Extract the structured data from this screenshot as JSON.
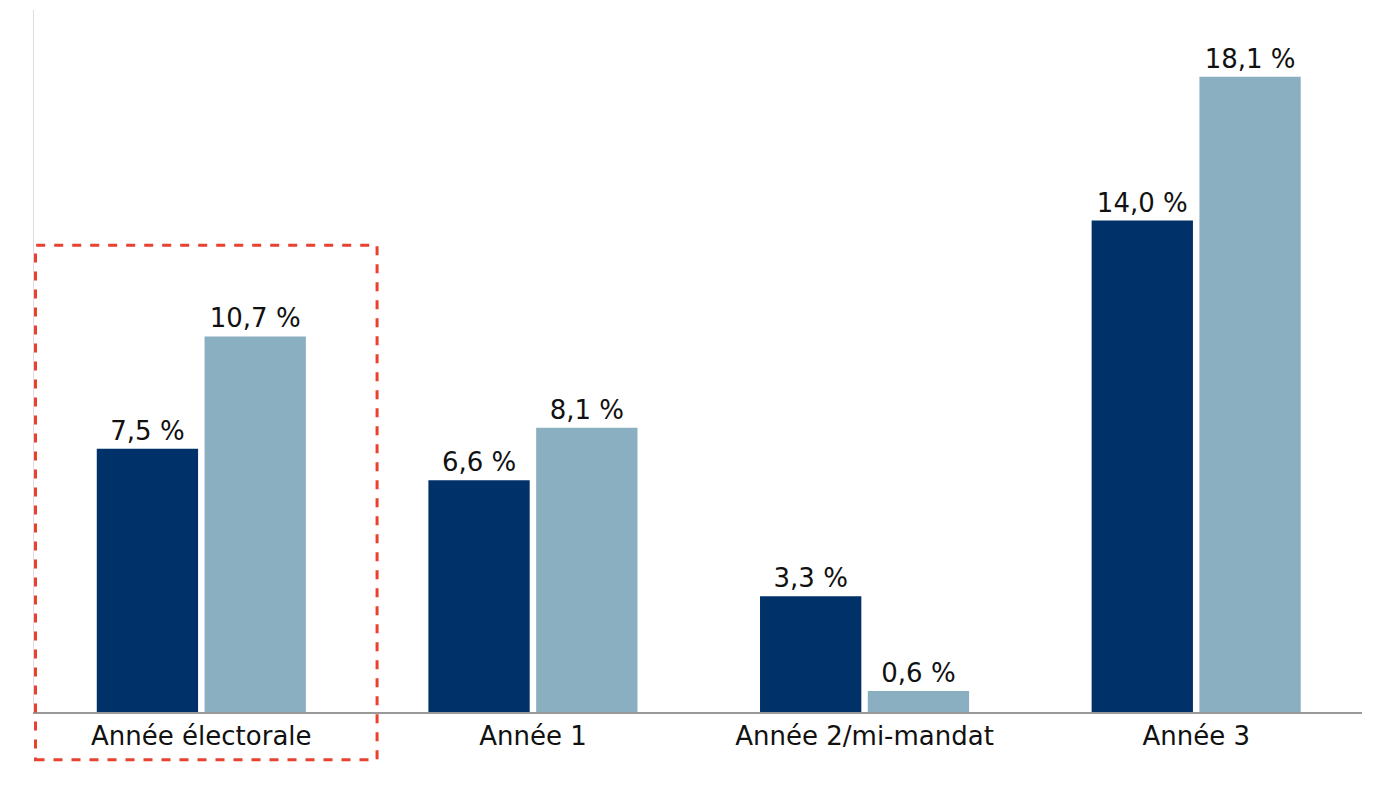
{
  "chart_data": {
    "type": "bar",
    "categories": [
      "Année électorale",
      "Année 1",
      "Année 2/mi-mandat",
      "Année 3"
    ],
    "series": [
      {
        "color": "#003168",
        "values": [
          7.5,
          6.6,
          3.3,
          14.0
        ],
        "value_labels": [
          "7,5 %",
          "6,6 %",
          "3,3 %",
          "14,0 %"
        ]
      },
      {
        "color": "#8aafc0",
        "values": [
          10.7,
          8.1,
          0.6,
          18.1
        ],
        "value_labels": [
          "10,7 %",
          "8,1 %",
          "0,6 %",
          "18,1 %"
        ]
      }
    ],
    "ylim": [
      0,
      20
    ],
    "grid": false,
    "data_labels": true,
    "tick_labels": "x"
  }
}
